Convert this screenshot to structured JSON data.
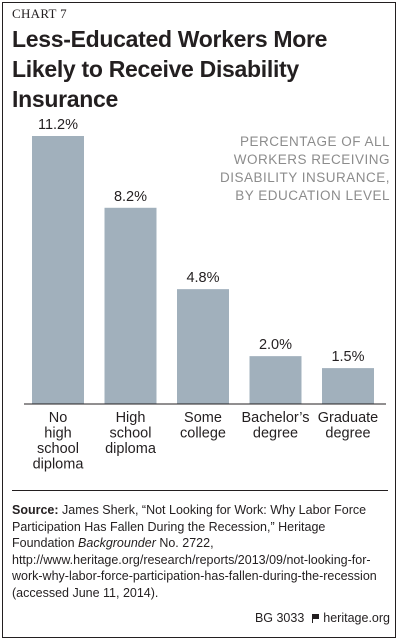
{
  "header": {
    "chart_label": "CHART 7",
    "title": "Less-Educated Workers More Likely to Receive Disability Insurance"
  },
  "legend_note": "PERCENTAGE OF ALL WORKERS RECEIVING DISABILITY INSURANCE, BY EDUCATION LEVEL",
  "colors": {
    "bar": "#a1b0bc",
    "text": "#231f20",
    "note": "#8c8c8c"
  },
  "chart_data": {
    "type": "bar",
    "categories": [
      "No high school diploma",
      "High school diploma",
      "Some college",
      "Bachelor’s degree",
      "Graduate degree"
    ],
    "category_lines": [
      [
        "No",
        "high",
        "school",
        "diploma"
      ],
      [
        "High",
        "school",
        "diploma"
      ],
      [
        "Some",
        "college"
      ],
      [
        "Bachelor’s",
        "degree"
      ],
      [
        "Graduate",
        "degree"
      ]
    ],
    "values": [
      11.2,
      8.2,
      4.8,
      2.0,
      1.5
    ],
    "value_labels": [
      "11.2%",
      "8.2%",
      "4.8%",
      "2.0%",
      "1.5%"
    ],
    "ylim": [
      0,
      11.2
    ],
    "grid": false,
    "title": "",
    "xlabel": "",
    "ylabel": ""
  },
  "source": {
    "label": "Source:",
    "text_1": " James Sherk, “Not Looking for Work: Why Labor Force Participation Has Fallen During the Recession,” Heritage Foundation ",
    "italic": "Backgrounder",
    "text_2": " No. 2722, http://www.heritage.org/research/reports/2013/09/not-looking-for-work-why-labor-force-participation-has-fallen-during-the-recession (accessed June 11, 2014)."
  },
  "footer": {
    "code": "BG 3033",
    "site": "heritage.org"
  }
}
